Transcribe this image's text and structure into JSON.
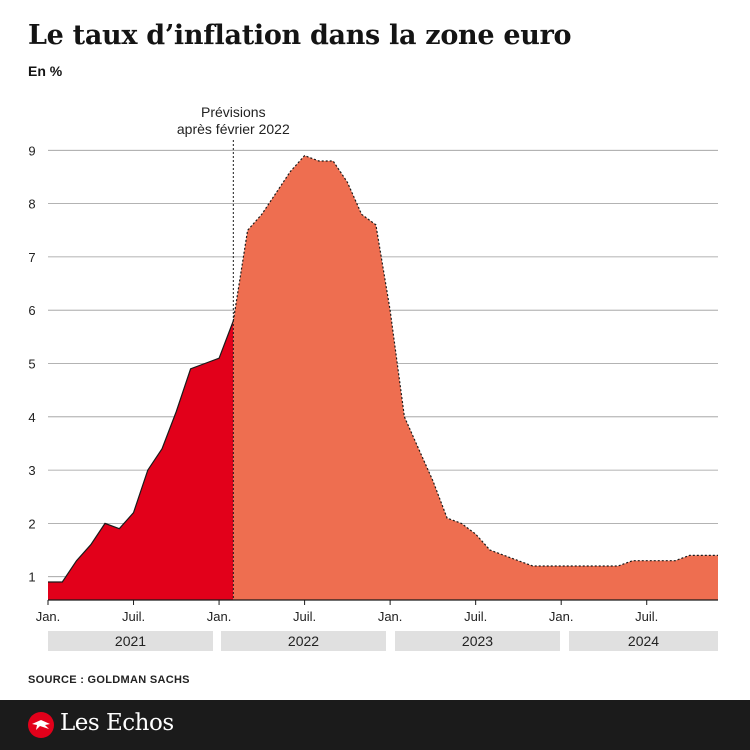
{
  "header": {
    "title": "Le taux d’inflation dans la zone euro",
    "unit": "En %"
  },
  "source": "SOURCE : GOLDMAN SACHS",
  "brand": {
    "name": "Les Echos",
    "icon": "les-echos-logo-icon"
  },
  "colors": {
    "observed": "#e2001a",
    "forecast": "#ee6e50",
    "grid": "#9a9a9a",
    "year_band": "#e0e0e0"
  },
  "chart_data": {
    "type": "area",
    "title": "Le taux d’inflation dans la zone euro",
    "ylabel": "En %",
    "xlabel": "",
    "ylim": [
      0.5,
      9
    ],
    "yticks": [
      1,
      2,
      3,
      4,
      5,
      6,
      7,
      8,
      9
    ],
    "grid": true,
    "x_month_start": "2021-01",
    "x_month_end": "2024-12",
    "x_tick_labels": [
      {
        "label": "Jan.",
        "month": 0
      },
      {
        "label": "Juil.",
        "month": 6
      },
      {
        "label": "Jan.",
        "month": 12
      },
      {
        "label": "Juil.",
        "month": 18
      },
      {
        "label": "Jan.",
        "month": 24
      },
      {
        "label": "Juil.",
        "month": 30
      },
      {
        "label": "Jan.",
        "month": 36
      },
      {
        "label": "Juil.",
        "month": 42
      }
    ],
    "years": [
      {
        "label": "2021",
        "start_month": 0,
        "end_month": 12
      },
      {
        "label": "2022",
        "start_month": 12,
        "end_month": 24
      },
      {
        "label": "2023",
        "start_month": 24,
        "end_month": 36
      },
      {
        "label": "2024",
        "start_month": 36,
        "end_month": 48
      }
    ],
    "annotation": {
      "text_line1": "Prévisions",
      "text_line2": "après février 2022",
      "month": 13
    },
    "series": [
      {
        "kind": "observed",
        "x": [
          0,
          1,
          2,
          3,
          4,
          5,
          6,
          7,
          8,
          9,
          10,
          11,
          12,
          13
        ],
        "values": [
          0.9,
          0.9,
          1.3,
          1.6,
          2.0,
          1.9,
          2.2,
          3.0,
          3.4,
          4.1,
          4.9,
          5.0,
          5.1,
          5.8
        ]
      },
      {
        "kind": "forecast",
        "x": [
          13,
          14,
          15,
          16,
          17,
          18,
          19,
          20,
          21,
          22,
          23,
          24,
          25,
          26,
          27,
          28,
          29,
          30,
          31,
          32,
          33,
          34,
          35,
          36,
          37,
          38,
          39,
          40,
          41,
          42,
          43,
          44,
          45,
          46,
          47
        ],
        "values": [
          5.8,
          7.5,
          7.8,
          8.2,
          8.6,
          8.9,
          8.8,
          8.8,
          8.4,
          7.8,
          7.6,
          6.0,
          4.0,
          3.4,
          2.8,
          2.1,
          2.0,
          1.8,
          1.5,
          1.4,
          1.3,
          1.2,
          1.2,
          1.2,
          1.2,
          1.2,
          1.2,
          1.2,
          1.3,
          1.3,
          1.3,
          1.3,
          1.4,
          1.4,
          1.4
        ]
      }
    ]
  }
}
